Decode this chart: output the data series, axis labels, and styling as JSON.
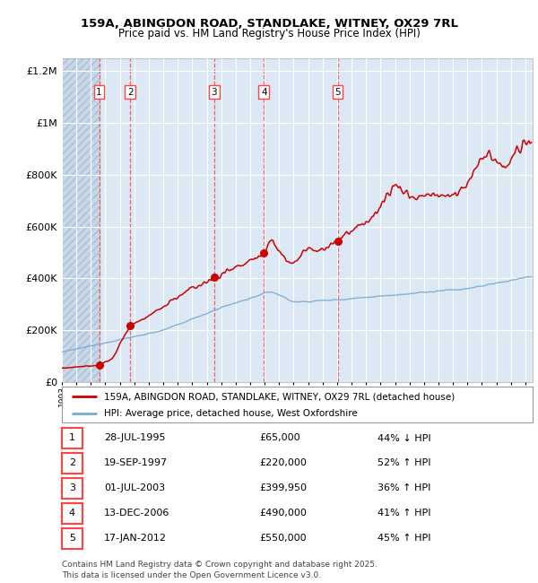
{
  "title": "159A, ABINGDON ROAD, STANDLAKE, WITNEY, OX29 7RL",
  "subtitle": "Price paid vs. HM Land Registry's House Price Index (HPI)",
  "legend_property": "159A, ABINGDON ROAD, STANDLAKE, WITNEY, OX29 7RL (detached house)",
  "legend_hpi": "HPI: Average price, detached house, West Oxfordshire",
  "footer": "Contains HM Land Registry data © Crown copyright and database right 2025.\nThis data is licensed under the Open Government Licence v3.0.",
  "transactions": [
    {
      "num": 1,
      "date": "28-JUL-1995",
      "price": 65000,
      "pct": "44%",
      "dir": "↓",
      "year": 1995.57
    },
    {
      "num": 2,
      "date": "19-SEP-1997",
      "price": 220000,
      "pct": "52%",
      "dir": "↑",
      "year": 1997.72
    },
    {
      "num": 3,
      "date": "01-JUL-2003",
      "price": 399950,
      "pct": "36%",
      "dir": "↑",
      "year": 2003.5
    },
    {
      "num": 4,
      "date": "13-DEC-2006",
      "price": 490000,
      "pct": "41%",
      "dir": "↑",
      "year": 2006.95
    },
    {
      "num": 5,
      "date": "17-JAN-2012",
      "price": 550000,
      "pct": "45%",
      "dir": "↑",
      "year": 2012.04
    }
  ],
  "bg_color": "#dce9f5",
  "hatch_color": "#c8d8e8",
  "grid_color": "#ffffff",
  "red_line_color": "#cc0000",
  "blue_line_color": "#7aaad0",
  "dashed_color": "#ff4444",
  "ylim": [
    0,
    1250000
  ],
  "yticks": [
    0,
    200000,
    400000,
    600000,
    800000,
    1000000,
    1200000
  ],
  "ytick_labels": [
    "£0",
    "£200K",
    "£400K",
    "£600K",
    "£800K",
    "£1M",
    "£1.2M"
  ],
  "xmin": 1993.0,
  "xmax": 2025.5
}
